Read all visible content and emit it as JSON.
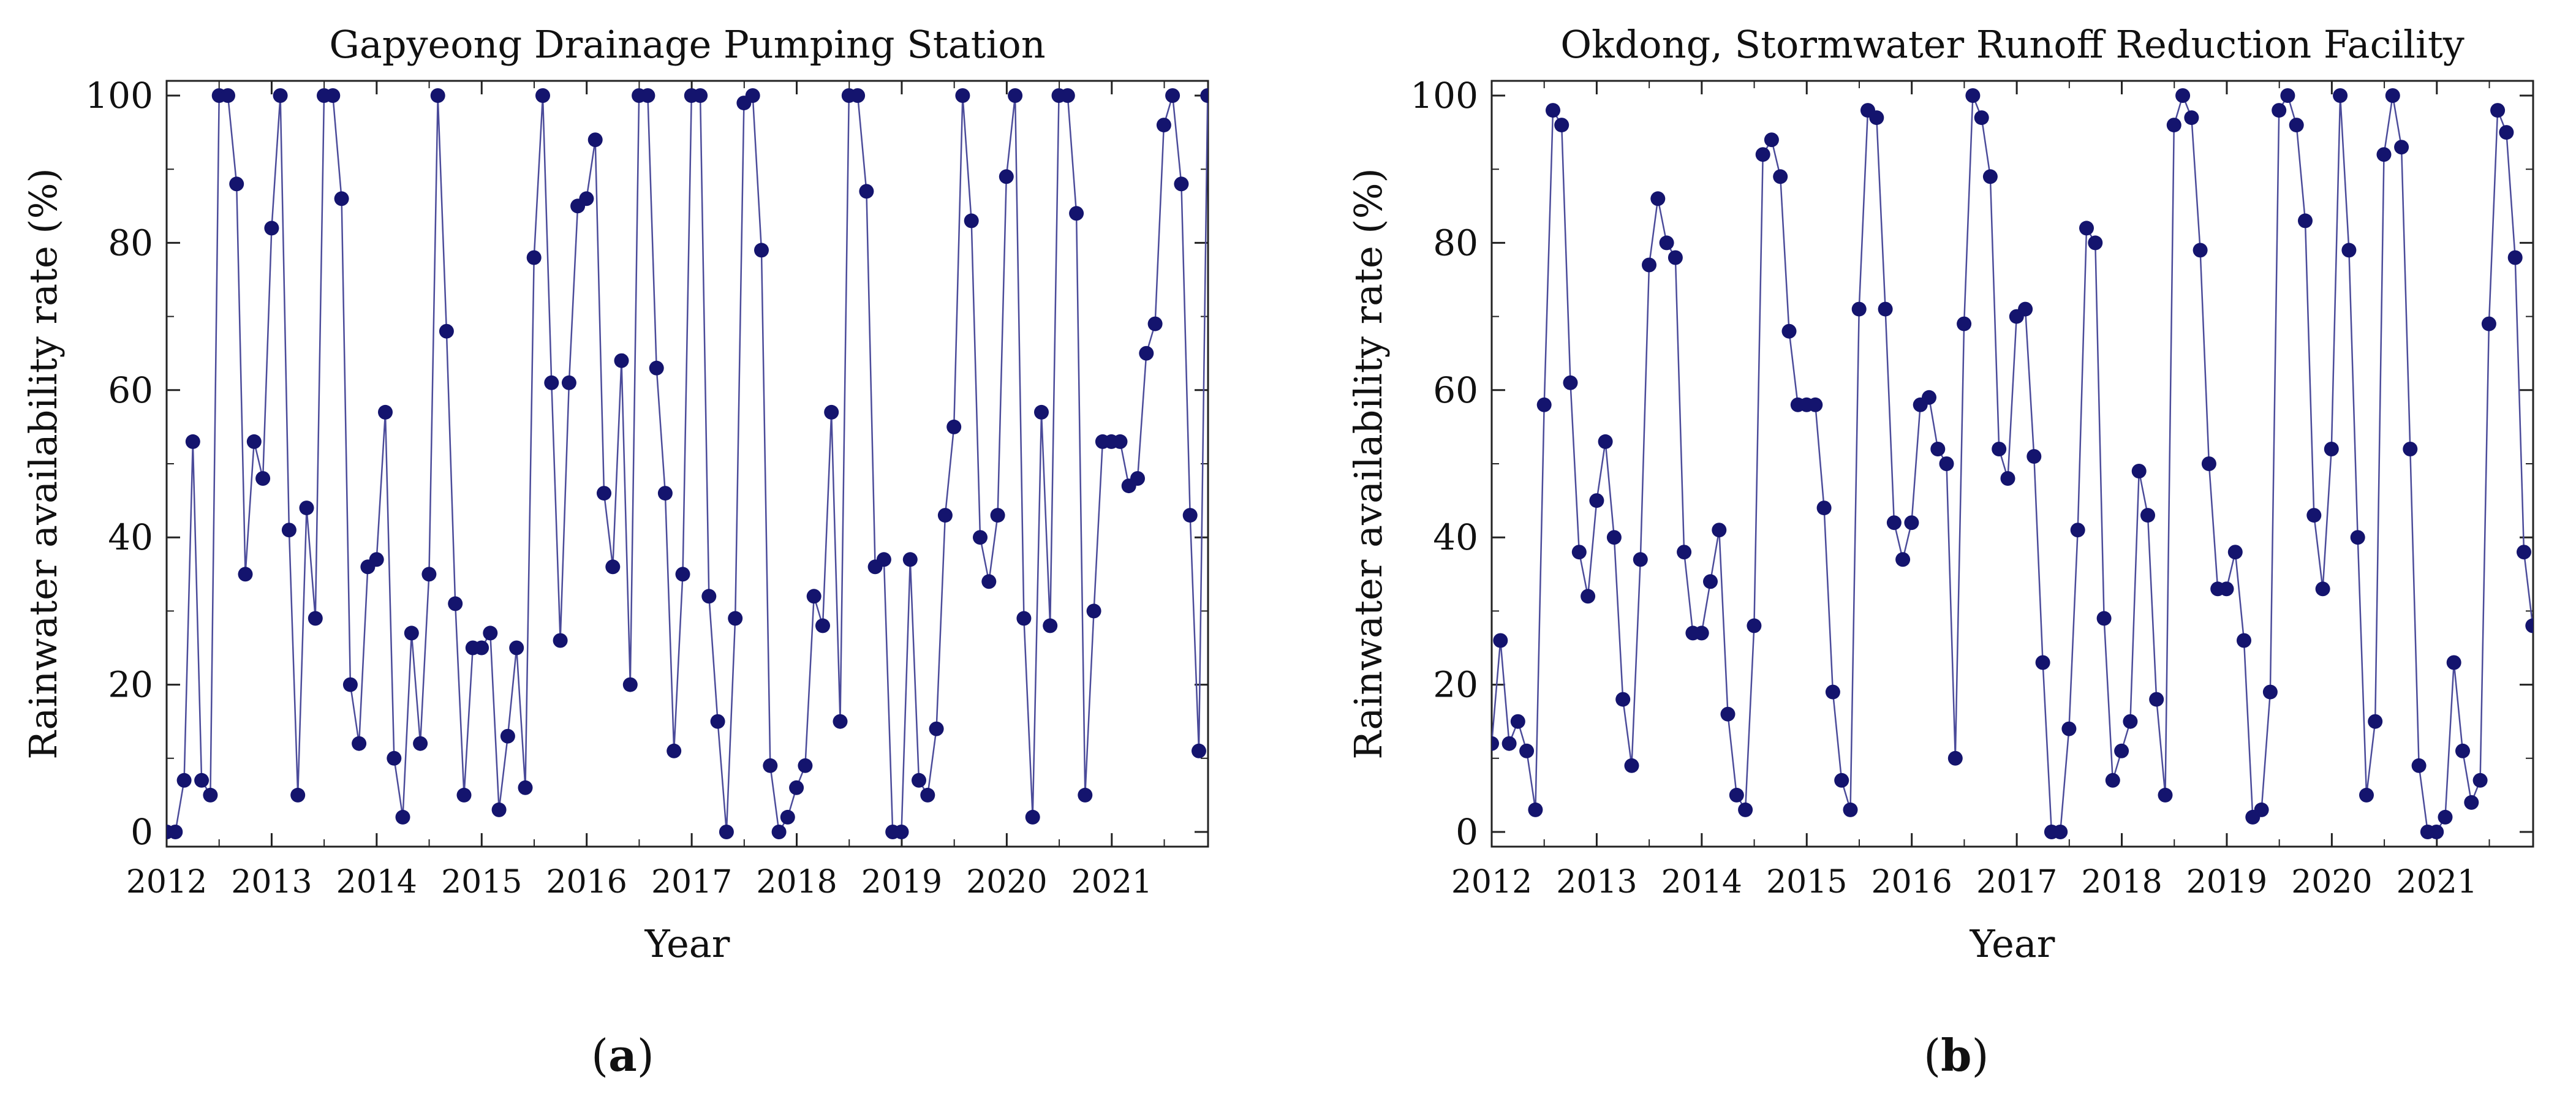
{
  "chart_data": [
    {
      "type": "line",
      "title": "Gapyeong Drainage Pumping Station",
      "xlabel": "Year",
      "ylabel": "Rainwater availability rate (%)",
      "xlim": [
        2012,
        2021.917
      ],
      "ylim": [
        -2,
        102
      ],
      "x_tick_labels": [
        "2012",
        "2013",
        "2014",
        "2015",
        "2016",
        "2017",
        "2018",
        "2019",
        "2020",
        "2021"
      ],
      "y_tick_labels": [
        "0",
        "20",
        "40",
        "60",
        "80",
        "100"
      ],
      "series": [
        {
          "name": "Rainwater availability rate",
          "x_start": 2012,
          "x_step": 0.0833,
          "values": [
            0,
            0,
            7,
            53,
            7,
            5,
            100,
            100,
            88,
            35,
            53,
            48,
            82,
            100,
            41,
            5,
            44,
            29,
            100,
            100,
            86,
            20,
            12,
            36,
            37,
            57,
            10,
            2,
            27,
            12,
            35,
            100,
            68,
            31,
            5,
            25,
            25,
            27,
            3,
            13,
            25,
            6,
            78,
            100,
            61,
            26,
            61,
            85,
            86,
            94,
            46,
            36,
            64,
            20,
            100,
            100,
            63,
            46,
            11,
            35,
            100,
            100,
            32,
            15,
            0,
            29,
            99,
            100,
            79,
            9,
            0,
            2,
            6,
            9,
            32,
            28,
            57,
            15,
            100,
            100,
            87,
            36,
            37,
            0,
            0,
            37,
            7,
            5,
            14,
            43,
            55,
            100,
            83,
            40,
            34,
            43,
            89,
            100,
            29,
            2,
            57,
            28,
            100,
            100,
            84,
            5,
            30,
            53,
            53,
            53,
            47,
            48,
            65,
            69,
            96,
            100,
            88,
            43,
            11,
            100
          ]
        }
      ],
      "caption_letter": "a"
    },
    {
      "type": "line",
      "title": "Okdong, Stormwater Runoff Reduction Facility",
      "xlabel": "Year",
      "ylabel": "Rainwater availability rate (%)",
      "xlim": [
        2012,
        2021.917
      ],
      "ylim": [
        -2,
        102
      ],
      "x_tick_labels": [
        "2012",
        "2013",
        "2014",
        "2015",
        "2016",
        "2017",
        "2018",
        "2019",
        "2020",
        "2021"
      ],
      "y_tick_labels": [
        "0",
        "20",
        "40",
        "60",
        "80",
        "100"
      ],
      "series": [
        {
          "name": "Rainwater availability rate",
          "x_start": 2012,
          "x_step": 0.0833,
          "values": [
            12,
            26,
            12,
            15,
            11,
            3,
            58,
            98,
            96,
            61,
            38,
            32,
            45,
            53,
            40,
            18,
            9,
            37,
            77,
            86,
            80,
            78,
            38,
            27,
            27,
            34,
            41,
            16,
            5,
            3,
            28,
            92,
            94,
            89,
            68,
            58,
            58,
            58,
            44,
            19,
            7,
            3,
            71,
            98,
            97,
            71,
            42,
            37,
            42,
            58,
            59,
            52,
            50,
            10,
            69,
            100,
            97,
            89,
            52,
            48,
            70,
            71,
            51,
            23,
            0,
            0,
            14,
            41,
            82,
            80,
            29,
            7,
            11,
            15,
            49,
            43,
            18,
            5,
            96,
            100,
            97,
            79,
            50,
            33,
            33,
            38,
            26,
            2,
            3,
            19,
            98,
            100,
            96,
            83,
            43,
            33,
            52,
            100,
            79,
            40,
            5,
            15,
            92,
            100,
            93,
            52,
            9,
            0,
            0,
            2,
            23,
            11,
            4,
            7,
            69,
            98,
            95,
            78,
            38,
            28
          ]
        }
      ],
      "caption_letter": "b"
    }
  ],
  "captions": [
    {
      "open": "(",
      "letter": "a",
      "close": ")"
    },
    {
      "open": "(",
      "letter": "b",
      "close": ")"
    }
  ],
  "colors": {
    "line": "#4b4b9a",
    "marker": "#14146e",
    "axis": "#222222"
  }
}
